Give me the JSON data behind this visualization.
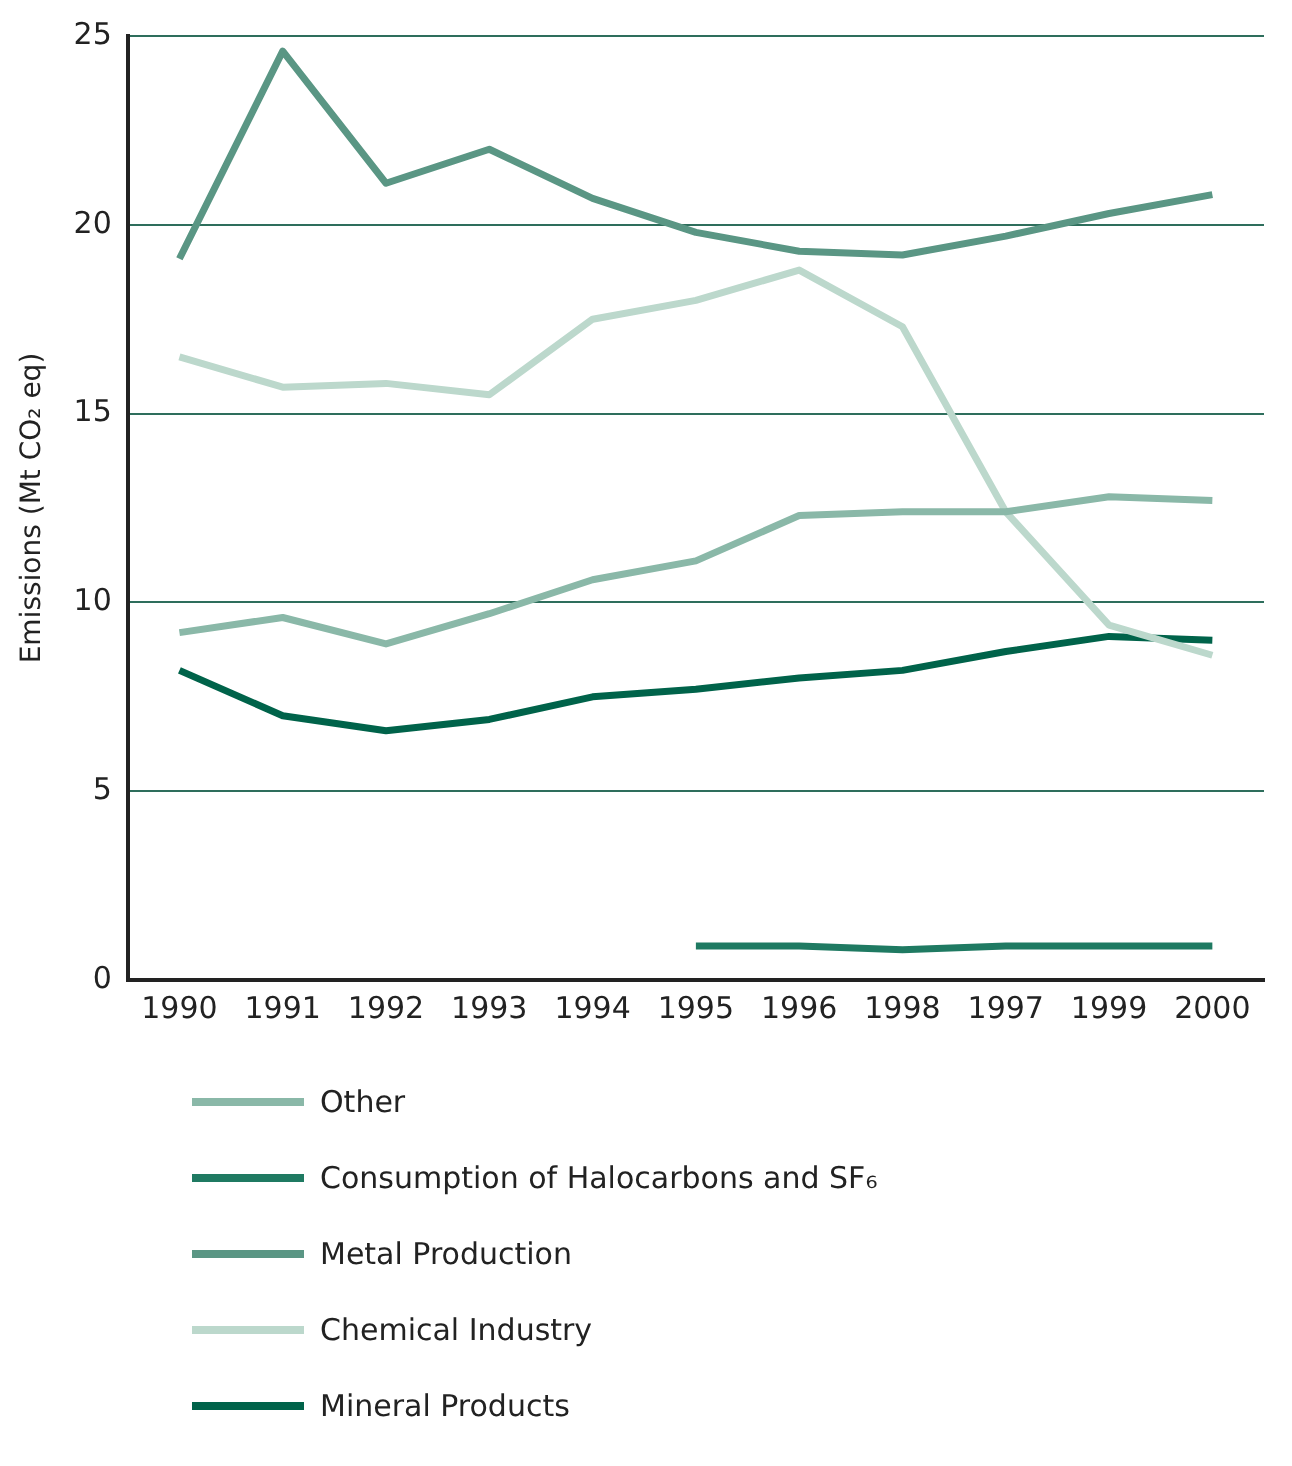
{
  "chart_data": {
    "type": "line",
    "ylabel": "Emissions (Mt CO₂ eq)",
    "categories": [
      "1990",
      "1991",
      "1992",
      "1993",
      "1994",
      "1995",
      "1996",
      "1998",
      "1997",
      "1999",
      "2000"
    ],
    "series": [
      {
        "name": "Other",
        "color": "#8ab8a8",
        "values": [
          9.2,
          9.6,
          8.9,
          9.7,
          10.6,
          11.1,
          12.3,
          12.4,
          12.4,
          12.8,
          12.7
        ]
      },
      {
        "name": "Consumption of Halocarbons and SF₆",
        "color": "#1f7a62",
        "values": [
          null,
          null,
          null,
          null,
          null,
          0.9,
          0.9,
          0.8,
          0.9,
          0.9,
          0.9
        ]
      },
      {
        "name": "Metal Production",
        "color": "#5a9684",
        "values": [
          19.1,
          24.6,
          21.1,
          22.0,
          20.7,
          19.8,
          19.3,
          19.2,
          19.7,
          20.3,
          20.8
        ]
      },
      {
        "name": "Chemical Industry",
        "color": "#bcd8cc",
        "values": [
          16.5,
          15.7,
          15.8,
          15.5,
          17.5,
          18.0,
          18.8,
          17.3,
          12.4,
          9.4,
          8.6
        ]
      },
      {
        "name": "Mineral Products",
        "color": "#00634a",
        "values": [
          8.2,
          7.0,
          6.6,
          6.9,
          7.5,
          7.7,
          8.0,
          8.2,
          8.7,
          9.1,
          9.0
        ]
      }
    ],
    "ylim": [
      0,
      25
    ],
    "yticks": [
      0,
      5,
      10,
      15,
      20,
      25
    ],
    "grid": "y",
    "legend": "bottom",
    "marker": "none",
    "line_style": "solid"
  }
}
